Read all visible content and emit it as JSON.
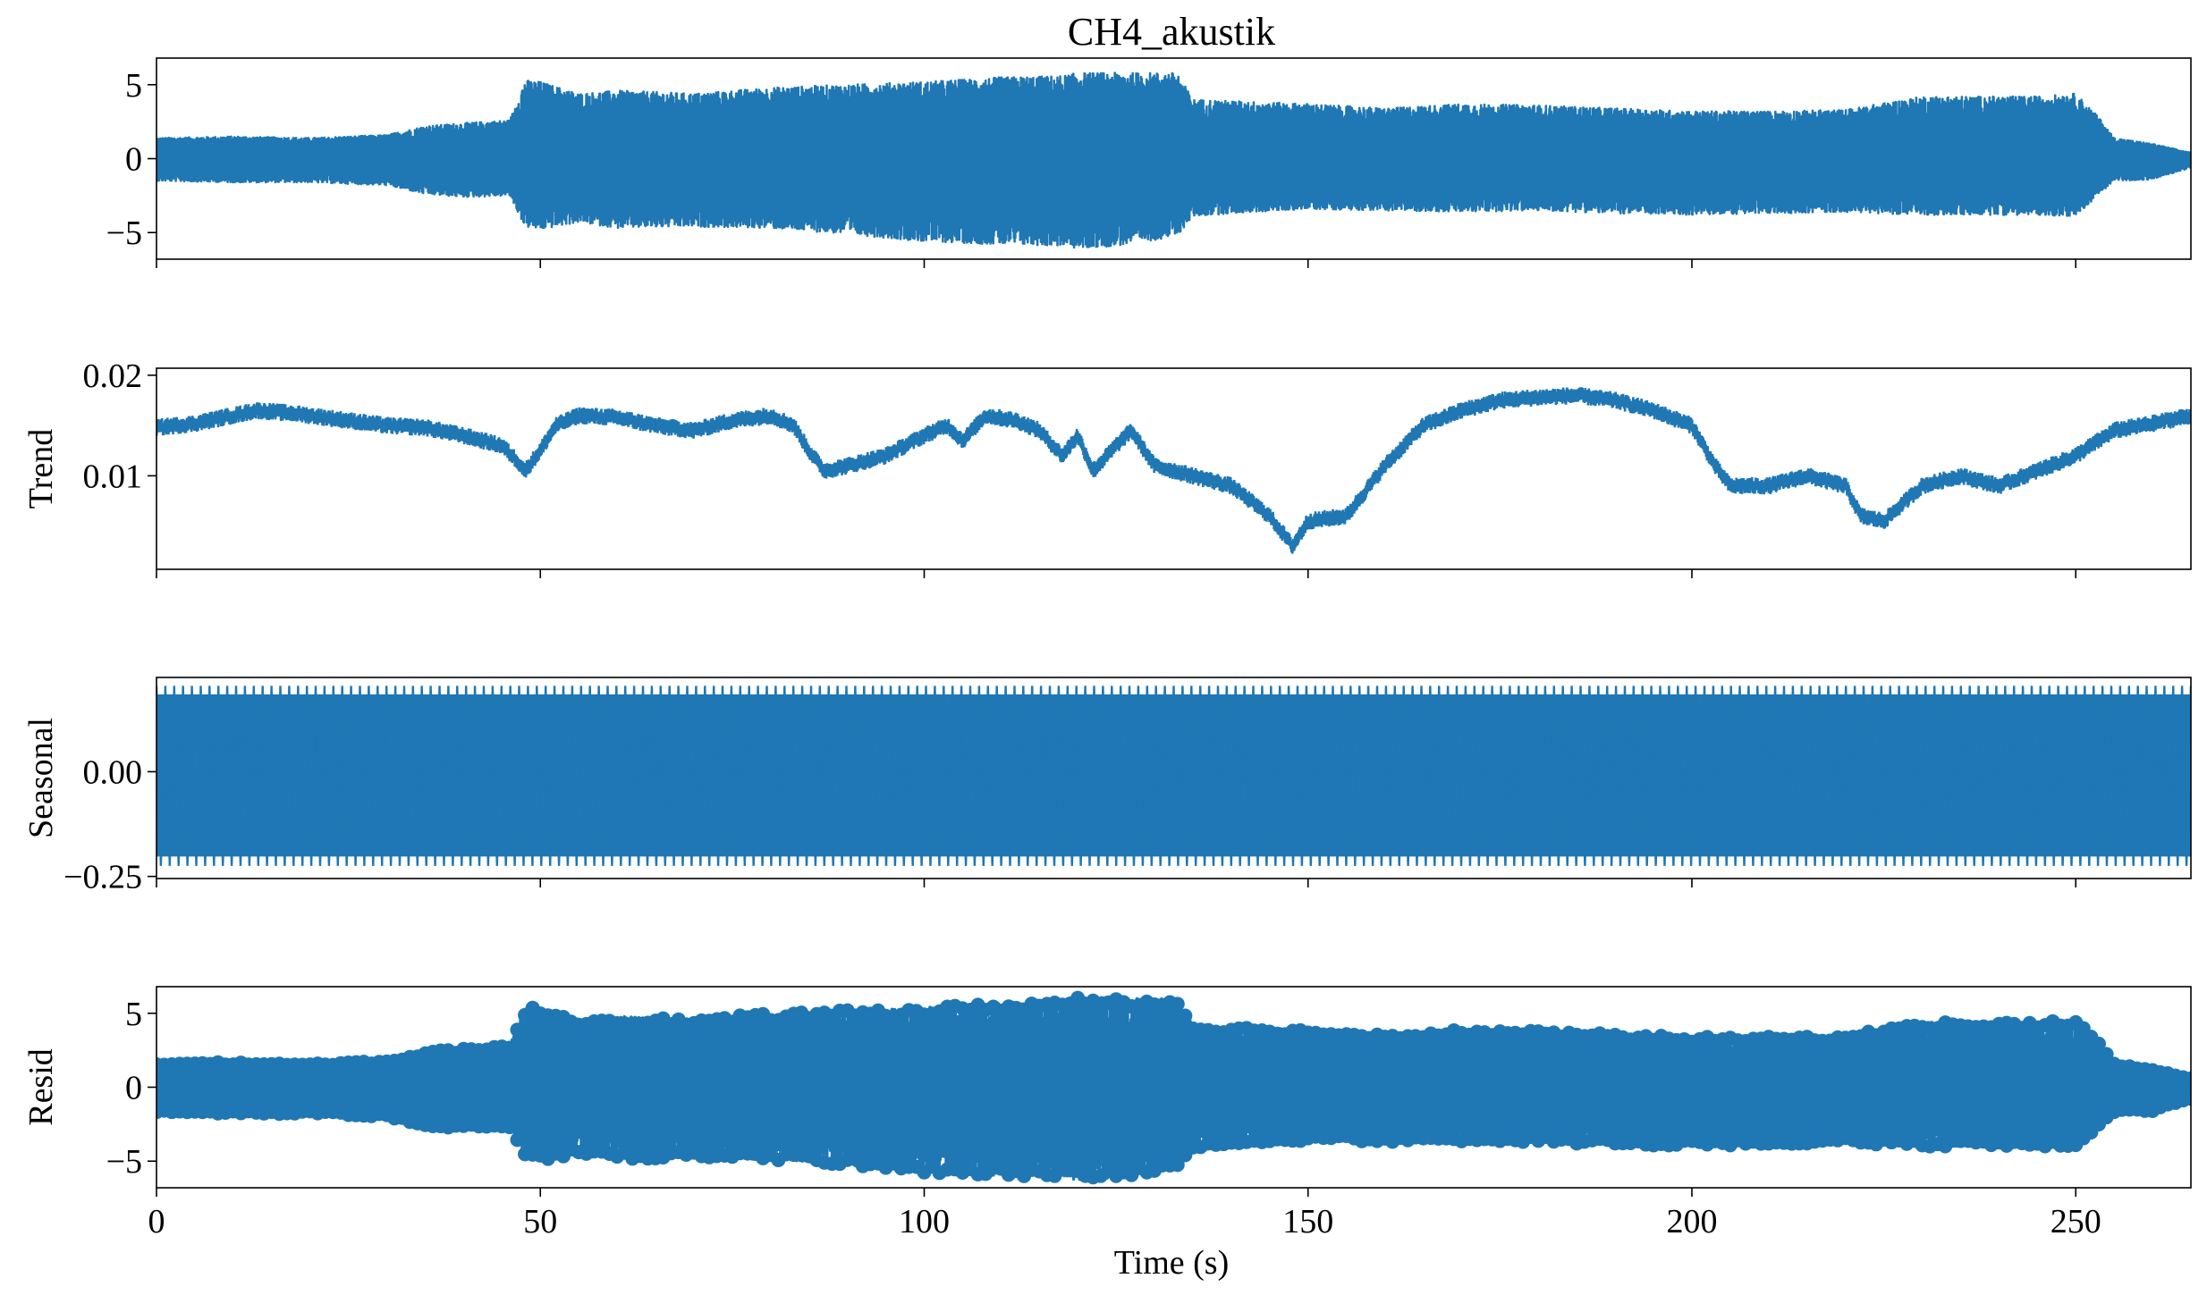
{
  "chart_data": {
    "type": "line",
    "title": "CH4_akustik",
    "xlabel": "Time (s)",
    "xlim": [
      0,
      265
    ],
    "xticks": [
      0,
      50,
      100,
      150,
      200,
      250
    ],
    "color": "#1f77b4",
    "panels": [
      {
        "id": "observed",
        "ylabel": "",
        "ylim": [
          -6.8,
          6.8
        ],
        "yticks": [
          {
            "v": 5,
            "label": "5"
          },
          {
            "v": 0,
            "label": "0"
          },
          {
            "v": -5,
            "label": "−5"
          }
        ],
        "style": "line",
        "baseline": 0,
        "envelope": {
          "t": [
            0,
            10,
            20,
            30,
            35,
            40,
            46,
            48,
            50,
            55,
            60,
            70,
            80,
            90,
            100,
            110,
            118,
            120,
            125,
            130,
            133,
            135,
            140,
            150,
            160,
            170,
            180,
            190,
            200,
            210,
            220,
            230,
            240,
            245,
            250,
            253,
            255,
            260,
            265
          ],
          "upper": [
            1.4,
            1.5,
            1.4,
            1.6,
            2.2,
            2.4,
            2.6,
            5.3,
            5.2,
            4.4,
            4.6,
            4.4,
            4.8,
            5.0,
            5.2,
            5.5,
            5.6,
            5.8,
            5.8,
            5.8,
            5.8,
            4.0,
            3.9,
            3.7,
            3.4,
            3.7,
            3.6,
            3.4,
            3.2,
            3.2,
            3.3,
            4.2,
            4.2,
            4.2,
            4.4,
            2.8,
            1.4,
            1.0,
            0.4
          ],
          "lower": [
            -1.5,
            -1.6,
            -1.6,
            -1.8,
            -2.4,
            -2.6,
            -2.5,
            -4.6,
            -4.8,
            -4.3,
            -4.7,
            -4.6,
            -4.7,
            -5.1,
            -5.6,
            -5.8,
            -5.9,
            -6.1,
            -5.9,
            -5.5,
            -5.2,
            -3.9,
            -3.7,
            -3.4,
            -3.5,
            -3.6,
            -3.5,
            -3.7,
            -3.8,
            -3.7,
            -3.6,
            -3.8,
            -3.8,
            -3.8,
            -3.9,
            -2.4,
            -1.5,
            -1.4,
            -0.6
          ]
        }
      },
      {
        "id": "trend",
        "ylabel": "Trend",
        "ylim": [
          0.0007,
          0.0207
        ],
        "yticks": [
          {
            "v": 0.02,
            "label": "0.02"
          },
          {
            "v": 0.01,
            "label": "0.01"
          }
        ],
        "style": "band",
        "band_half_width": 0.0006,
        "series": {
          "t": [
            0,
            5,
            10,
            13,
            18,
            25,
            30,
            35,
            40,
            45,
            47,
            48,
            50,
            52,
            55,
            60,
            65,
            70,
            75,
            80,
            83,
            85,
            87,
            90,
            95,
            100,
            103,
            105,
            108,
            112,
            115,
            118,
            120,
            122,
            125,
            127,
            130,
            135,
            140,
            145,
            148,
            150,
            155,
            160,
            165,
            170,
            175,
            180,
            185,
            190,
            195,
            200,
            203,
            205,
            210,
            215,
            220,
            222,
            225,
            230,
            235,
            240,
            245,
            250,
            255,
            260,
            265
          ],
          "y": [
            0.0148,
            0.0152,
            0.016,
            0.0165,
            0.0162,
            0.0155,
            0.015,
            0.0148,
            0.014,
            0.013,
            0.0115,
            0.0105,
            0.0125,
            0.015,
            0.016,
            0.0158,
            0.015,
            0.0145,
            0.0155,
            0.016,
            0.015,
            0.0125,
            0.0105,
            0.011,
            0.012,
            0.014,
            0.015,
            0.0135,
            0.016,
            0.0155,
            0.0145,
            0.012,
            0.014,
            0.0105,
            0.013,
            0.0145,
            0.011,
            0.01,
            0.009,
            0.006,
            0.003,
            0.0055,
            0.006,
            0.011,
            0.015,
            0.0165,
            0.0175,
            0.0178,
            0.018,
            0.0175,
            0.0165,
            0.015,
            0.011,
            0.009,
            0.009,
            0.01,
            0.009,
            0.006,
            0.0055,
            0.009,
            0.01,
            0.009,
            0.0105,
            0.012,
            0.0145,
            0.0152,
            0.016
          ]
        }
      },
      {
        "id": "seasonal",
        "ylabel": "Seasonal",
        "ylim": [
          -0.255,
          0.225
        ],
        "yticks": [
          {
            "v": 0.0,
            "label": "0.00"
          },
          {
            "v": -0.25,
            "label": "−0.25"
          }
        ],
        "style": "seasonal",
        "amplitude_upper": 0.205,
        "amplitude_lower": -0.225,
        "cycles": 230
      },
      {
        "id": "resid",
        "ylabel": "Resid",
        "ylim": [
          -6.8,
          6.8
        ],
        "yticks": [
          {
            "v": 5,
            "label": "5"
          },
          {
            "v": 0,
            "label": "0"
          },
          {
            "v": -5,
            "label": "−5"
          }
        ],
        "style": "scatter",
        "baseline": 0,
        "envelope": {
          "t": [
            0,
            10,
            20,
            30,
            35,
            40,
            46,
            48,
            50,
            55,
            60,
            70,
            80,
            90,
            100,
            110,
            118,
            120,
            125,
            130,
            133,
            135,
            140,
            150,
            160,
            170,
            180,
            190,
            200,
            210,
            220,
            230,
            240,
            245,
            250,
            253,
            255,
            260,
            265
          ],
          "upper": [
            1.6,
            1.7,
            1.6,
            1.8,
            2.4,
            2.6,
            2.8,
            5.4,
            5.4,
            4.6,
            4.8,
            4.6,
            5.0,
            5.2,
            5.4,
            5.7,
            5.9,
            6.1,
            6.1,
            6.0,
            6.0,
            4.2,
            4.1,
            3.9,
            3.6,
            3.9,
            3.8,
            3.6,
            3.4,
            3.4,
            3.5,
            4.4,
            4.4,
            4.4,
            4.6,
            3.0,
            1.6,
            1.2,
            0.6
          ],
          "lower": [
            -1.7,
            -1.8,
            -1.8,
            -2.0,
            -2.6,
            -2.8,
            -2.7,
            -4.8,
            -5.0,
            -4.5,
            -4.9,
            -4.8,
            -4.9,
            -5.3,
            -5.8,
            -6.0,
            -6.1,
            -6.3,
            -6.1,
            -5.7,
            -5.4,
            -4.1,
            -3.9,
            -3.6,
            -3.7,
            -3.8,
            -3.7,
            -3.9,
            -4.0,
            -3.9,
            -3.8,
            -4.0,
            -4.0,
            -4.0,
            -4.1,
            -2.6,
            -1.7,
            -1.6,
            -0.8
          ]
        }
      }
    ]
  }
}
